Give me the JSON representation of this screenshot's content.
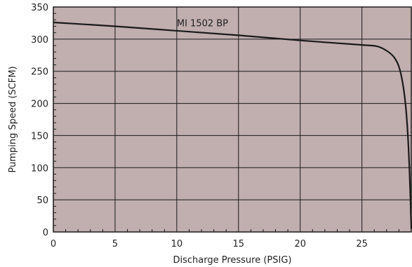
{
  "chart_data": {
    "type": "line",
    "title": "",
    "xlabel": "Discharge Pressure (PSIG)",
    "ylabel": "Pumping Speed (SCFM)",
    "xlim": [
      0,
      29
    ],
    "ylim": [
      0,
      350
    ],
    "x_ticks": [
      0,
      5,
      10,
      15,
      20,
      25
    ],
    "y_ticks": [
      0,
      50,
      100,
      150,
      200,
      250,
      300,
      350
    ],
    "x_tick_labels": [
      "0",
      "5",
      "10",
      "15",
      "20",
      "25"
    ],
    "y_tick_labels": [
      "0",
      "50",
      "100",
      "150",
      "200",
      "250",
      "300",
      "350"
    ],
    "grid": true,
    "legend": "none",
    "colors": {
      "plot_background": "#c1aeaf",
      "line": "#1a1a1a",
      "grid": "#1a1a1a"
    },
    "series": [
      {
        "name": "MI 1502 BP",
        "x": [
          0,
          5,
          10,
          15,
          20,
          25,
          26.2,
          27,
          27.6,
          28.0,
          28.3,
          28.55,
          28.75,
          28.9,
          29.0
        ],
        "y": [
          326,
          320,
          313,
          306,
          298,
          291,
          289,
          282,
          272,
          257,
          232,
          195,
          140,
          70,
          5
        ]
      }
    ],
    "annotations": [
      {
        "text": "MI 1502 BP",
        "x": 10,
        "y": 318
      }
    ]
  }
}
